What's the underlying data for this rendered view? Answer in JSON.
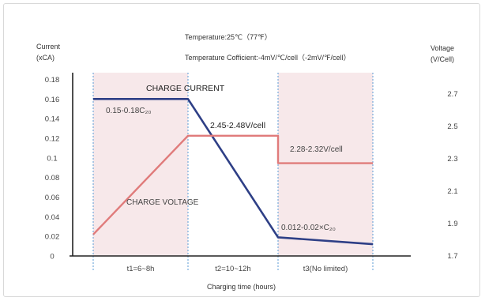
{
  "chart_data": {
    "type": "line",
    "title": "Temperature:25℃（77℉）",
    "subtitle": "Temperature Cofficient:-4mV/℃/cell（-2mV/℉/cell）",
    "ylabel_left": [
      "Current",
      "(xCA)"
    ],
    "ylabel_right": [
      "Voltage",
      "(V/Cell)"
    ],
    "xlabel": "Charging time (hours)",
    "phases": [
      "t1=6~8h",
      "t2=10~12h",
      "t3(No limited)"
    ],
    "y_left": {
      "min": 0,
      "max": 0.18,
      "ticks": [
        "0",
        "0.02",
        "0.04",
        "0.06",
        "0.08",
        "0.1",
        "0.12",
        "0.14",
        "0.16",
        "0.18"
      ]
    },
    "y_right": {
      "min": 1.6,
      "max": 2.9,
      "ticks": [
        "1.7",
        "1.9",
        "2.1",
        "2.3",
        "2.5",
        "2.7"
      ]
    },
    "series": [
      {
        "name": "CHARGE CURRENT",
        "axis": "left",
        "color": "#2e3f86",
        "points": [
          [
            0,
            0.16
          ],
          [
            1,
            0.16
          ],
          [
            2,
            0.019
          ],
          [
            3,
            0.012
          ]
        ]
      },
      {
        "name": "CHARGE VOLTAGE",
        "axis": "right",
        "color": "#e07b7b",
        "points": [
          [
            0,
            1.83
          ],
          [
            1,
            2.44
          ],
          [
            2,
            2.44
          ],
          [
            2,
            2.27
          ],
          [
            3,
            2.27
          ]
        ]
      }
    ],
    "annotations": [
      {
        "text": "CHARGE CURRENT",
        "style": "bold"
      },
      {
        "text": "0.15-0.18C₂₀",
        "style": "normal"
      },
      {
        "text": "2.45-2.48V/cell",
        "style": "bold"
      },
      {
        "text": "2.28-2.32V/cell",
        "style": "normal"
      },
      {
        "text": "CHARGE VOLTAGE",
        "style": "normal"
      },
      {
        "text": "0.012-0.02×C₂₀",
        "style": "normal"
      }
    ],
    "colors": {
      "shade": "#f7e8ea",
      "divider": "#5b9bd5",
      "axis": "#222222"
    }
  }
}
